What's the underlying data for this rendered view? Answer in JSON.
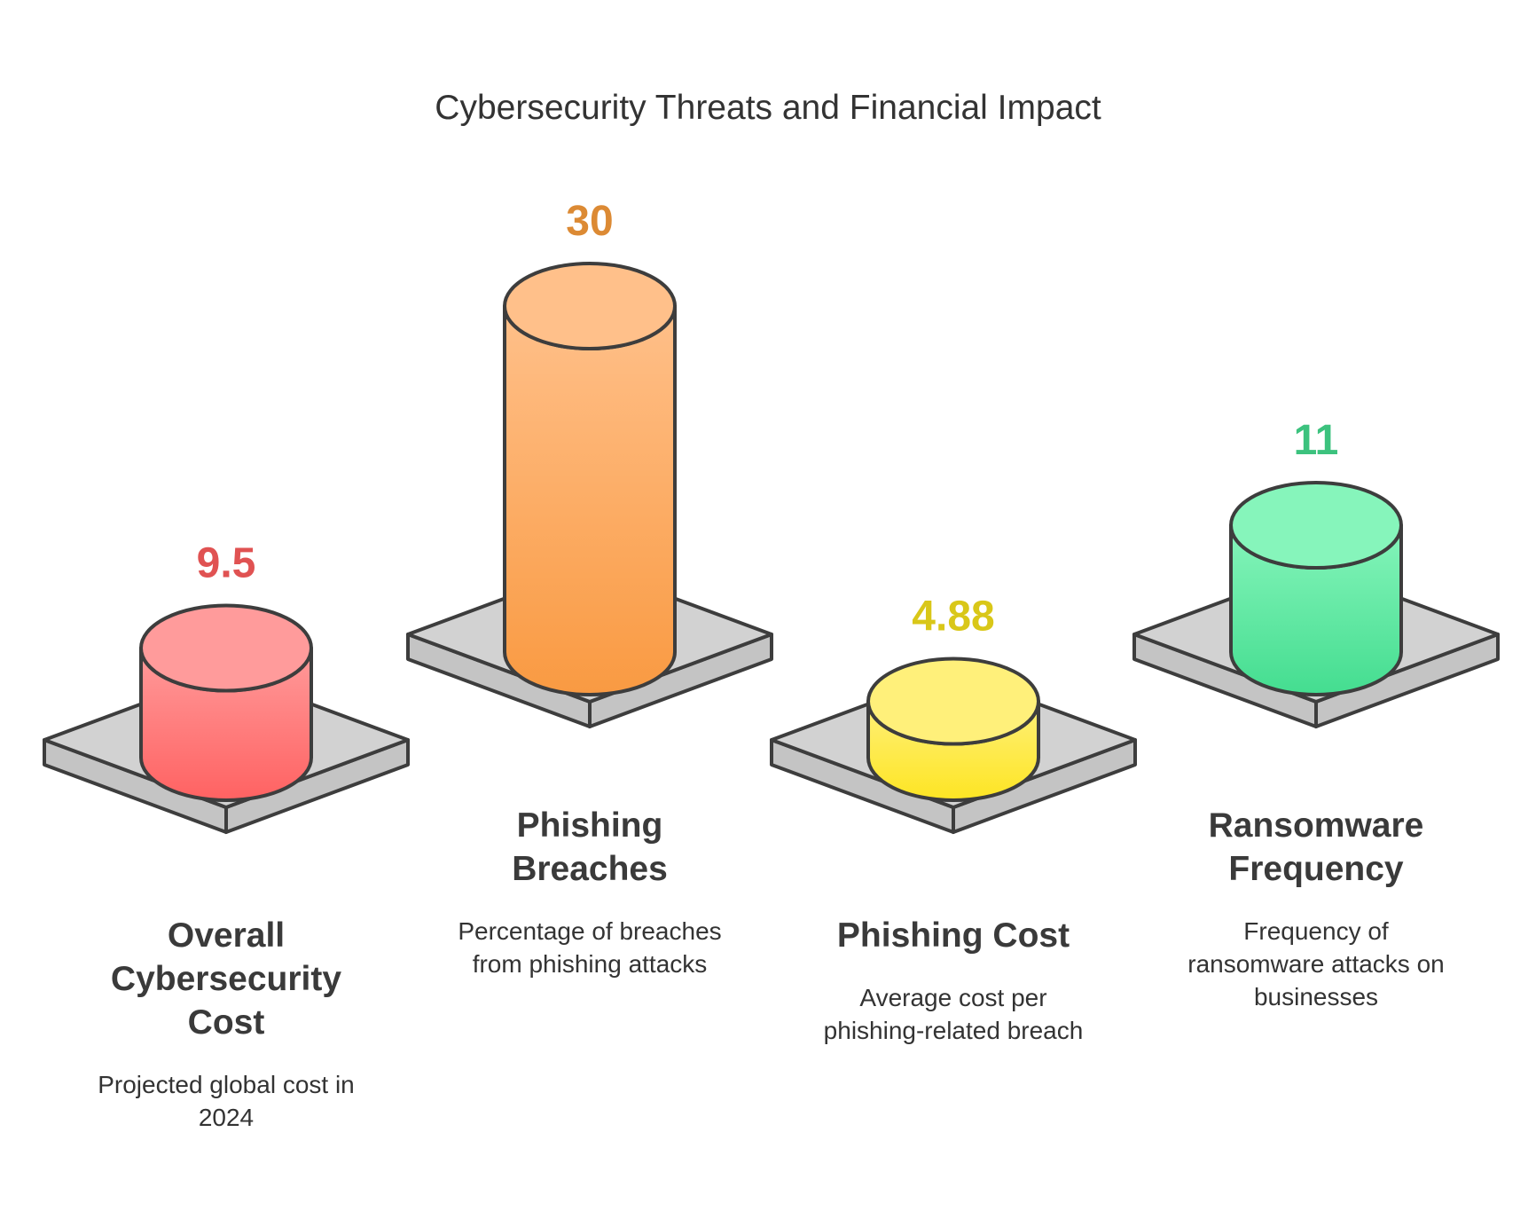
{
  "chart_data": {
    "type": "bar",
    "title": "Cybersecurity Threats and Financial Impact",
    "categories": [
      "Overall Cybersecurity Cost",
      "Phishing Breaches",
      "Phishing Cost",
      "Ransomware Frequency"
    ],
    "values": [
      9.5,
      30,
      4.88,
      11
    ],
    "value_labels": [
      "9.5",
      "30",
      "4.88",
      "11"
    ],
    "category_lines": [
      [
        "Overall",
        "Cybersecurity",
        "Cost"
      ],
      [
        "Phishing",
        "Breaches"
      ],
      [
        "Phishing Cost"
      ],
      [
        "Ransomware",
        "Frequency"
      ]
    ],
    "descriptions": [
      [
        "Projected global cost in",
        "2024"
      ],
      [
        "Percentage of breaches",
        "from phishing attacks"
      ],
      [
        "Average cost per",
        "phishing-related breach"
      ],
      [
        "Frequency of",
        "ransomware attacks on",
        "businesses"
      ]
    ],
    "colors": [
      {
        "top": "#ff9b9b",
        "bottom": "#ff6262",
        "label": "#e05252"
      },
      {
        "top": "#ffc08a",
        "bottom": "#f99a42",
        "label": "#dc8a34"
      },
      {
        "top": "#fff07a",
        "bottom": "#fde523",
        "label": "#d9c718"
      },
      {
        "top": "#86f5bb",
        "bottom": "#44dd90",
        "label": "#3cc27e"
      }
    ],
    "base_colors": {
      "top": "#d2d2d2",
      "side": "#c4c4c4",
      "outline": "#3d3d3d"
    },
    "xlabel": "",
    "ylabel": ""
  }
}
